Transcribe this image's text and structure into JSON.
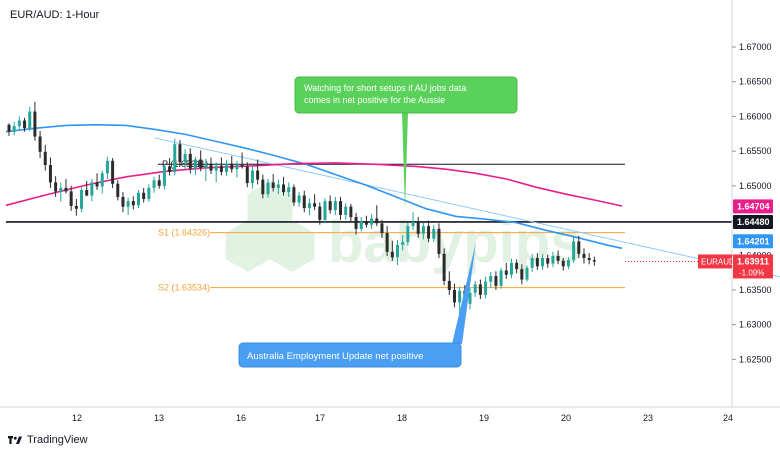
{
  "chart_data": {
    "type": "candlestick",
    "title": "EUR/AUD: 1-Hour",
    "symbol": "EURAUD",
    "xlabel": "",
    "ylabel": "",
    "x_ticks": [
      "12",
      "13",
      "16",
      "17",
      "18",
      "19",
      "20",
      "23",
      "24"
    ],
    "y_ticks": [
      "1.67000",
      "1.66500",
      "1.66000",
      "1.65500",
      "1.65000",
      "1.64500",
      "1.64000",
      "1.63500",
      "1.63000",
      "1.62500"
    ],
    "ylim": [
      1.6216,
      1.6736
    ],
    "grid": false,
    "colors": {
      "up": "#26a69a",
      "down": "#2b2b2b",
      "ma_fast": "#2f96f3",
      "ma_slow": "#e91e8c",
      "pivot_line": "#131722",
      "support": "#f7a23b",
      "trendline": "#90caf9",
      "price_badge": "#f23645"
    },
    "price_labels": [
      {
        "value": "1.64704",
        "color": "#e91e8c"
      },
      {
        "value": "1.64480",
        "color": "#131722"
      },
      {
        "value": "1.64201",
        "color": "#2f96f3"
      }
    ],
    "current": {
      "symbol": "EURAUD",
      "price": "1.63911",
      "change": "-1.09%"
    },
    "levels": [
      {
        "label": "P (1.65311)",
        "value": 1.65311,
        "color": "#131722"
      },
      {
        "label": "S1 (1.64326)",
        "value": 1.64326,
        "color": "#f7a23b"
      },
      {
        "label": "S2 (1.63534)",
        "value": 1.63534,
        "color": "#f7a23b"
      }
    ],
    "horizontal_level": 1.6448,
    "series": [
      {
        "name": "",
        "kind": "ma_fast",
        "points": [
          [
            0,
            1.6578
          ],
          [
            30,
            1.6583
          ],
          [
            60,
            1.6587
          ],
          [
            90,
            1.6588
          ],
          [
            120,
            1.6587
          ],
          [
            150,
            1.6581
          ],
          [
            180,
            1.6574
          ],
          [
            210,
            1.6564
          ],
          [
            240,
            1.6554
          ],
          [
            270,
            1.6543
          ],
          [
            300,
            1.6531
          ],
          [
            330,
            1.6516
          ],
          [
            360,
            1.6501
          ],
          [
            390,
            1.6484
          ],
          [
            420,
            1.6467
          ],
          [
            450,
            1.6456
          ],
          [
            480,
            1.6452
          ],
          [
            510,
            1.6447
          ],
          [
            540,
            1.6436
          ],
          [
            570,
            1.6426
          ],
          [
            600,
            1.6415
          ],
          [
            616,
            1.641
          ]
        ]
      },
      {
        "name": "",
        "kind": "ma_slow",
        "points": [
          [
            0,
            1.6472
          ],
          [
            40,
            1.6487
          ],
          [
            80,
            1.6501
          ],
          [
            120,
            1.6513
          ],
          [
            160,
            1.6521
          ],
          [
            200,
            1.6526
          ],
          [
            250,
            1.6529
          ],
          [
            290,
            1.6532
          ],
          [
            330,
            1.6533
          ],
          [
            370,
            1.6531
          ],
          [
            410,
            1.6528
          ],
          [
            440,
            1.6524
          ],
          [
            470,
            1.6518
          ],
          [
            500,
            1.651
          ],
          [
            530,
            1.6498
          ],
          [
            560,
            1.6488
          ],
          [
            590,
            1.6479
          ],
          [
            616,
            1.6471
          ]
        ]
      }
    ],
    "trendline": {
      "from": [
        155,
        1.6569
      ],
      "to": [
        780,
        1.6369
      ]
    },
    "candles": [
      [
        1.6588,
        1.659,
        1.6572,
        1.6578
      ],
      [
        1.6578,
        1.6592,
        1.6573,
        1.6586
      ],
      [
        1.6586,
        1.66,
        1.658,
        1.6594
      ],
      [
        1.6594,
        1.6598,
        1.6578,
        1.6583
      ],
      [
        1.6583,
        1.6614,
        1.6579,
        1.6607
      ],
      [
        1.6607,
        1.6621,
        1.6565,
        1.6571
      ],
      [
        1.6571,
        1.6579,
        1.654,
        1.6549
      ],
      [
        1.6549,
        1.6559,
        1.6522,
        1.653
      ],
      [
        1.653,
        1.6541,
        1.6497,
        1.6505
      ],
      [
        1.6505,
        1.6514,
        1.6484,
        1.6492
      ],
      [
        1.6492,
        1.6505,
        1.6477,
        1.6497
      ],
      [
        1.6497,
        1.651,
        1.6489,
        1.6492
      ],
      [
        1.6492,
        1.65,
        1.6464,
        1.6471
      ],
      [
        1.6471,
        1.6481,
        1.6457,
        1.6467
      ],
      [
        1.6467,
        1.6498,
        1.6462,
        1.6494
      ],
      [
        1.6494,
        1.6507,
        1.6485,
        1.6486
      ],
      [
        1.6486,
        1.651,
        1.6478,
        1.6505
      ],
      [
        1.6505,
        1.6518,
        1.6494,
        1.6499
      ],
      [
        1.6499,
        1.6522,
        1.6489,
        1.6518
      ],
      [
        1.6518,
        1.6542,
        1.651,
        1.6536
      ],
      [
        1.6536,
        1.654,
        1.6497,
        1.6503
      ],
      [
        1.6503,
        1.6508,
        1.6479,
        1.6484
      ],
      [
        1.6484,
        1.6491,
        1.6462,
        1.647
      ],
      [
        1.647,
        1.6483,
        1.6458,
        1.6478
      ],
      [
        1.6478,
        1.6485,
        1.6466,
        1.6472
      ],
      [
        1.6472,
        1.6494,
        1.6468,
        1.649
      ],
      [
        1.649,
        1.6497,
        1.6476,
        1.6481
      ],
      [
        1.6481,
        1.6502,
        1.6477,
        1.6497
      ],
      [
        1.6497,
        1.6513,
        1.649,
        1.6508
      ],
      [
        1.6508,
        1.6516,
        1.6496,
        1.65
      ],
      [
        1.65,
        1.6532,
        1.6495,
        1.6528
      ],
      [
        1.6528,
        1.654,
        1.6515,
        1.652
      ],
      [
        1.652,
        1.6568,
        1.6515,
        1.656
      ],
      [
        1.656,
        1.6566,
        1.6528,
        1.6534
      ],
      [
        1.6534,
        1.6553,
        1.6524,
        1.6546
      ],
      [
        1.6546,
        1.6554,
        1.6518,
        1.6525
      ],
      [
        1.6525,
        1.6542,
        1.6516,
        1.6538
      ],
      [
        1.6538,
        1.6551,
        1.6521,
        1.6526
      ],
      [
        1.6526,
        1.6539,
        1.6507,
        1.6532
      ],
      [
        1.6532,
        1.6541,
        1.6517,
        1.6522
      ],
      [
        1.6522,
        1.6534,
        1.6505,
        1.6529
      ],
      [
        1.6529,
        1.6541,
        1.6515,
        1.652
      ],
      [
        1.652,
        1.6537,
        1.6514,
        1.6532
      ],
      [
        1.6532,
        1.6543,
        1.6519,
        1.6524
      ],
      [
        1.6524,
        1.6536,
        1.6512,
        1.653
      ],
      [
        1.653,
        1.6548,
        1.6525,
        1.6528
      ],
      [
        1.6528,
        1.6534,
        1.6498,
        1.6504
      ],
      [
        1.6504,
        1.6528,
        1.6496,
        1.6522
      ],
      [
        1.6522,
        1.6538,
        1.6502,
        1.6509
      ],
      [
        1.6509,
        1.6516,
        1.6482,
        1.6488
      ],
      [
        1.6488,
        1.651,
        1.6483,
        1.6505
      ],
      [
        1.6505,
        1.6517,
        1.6492,
        1.6497
      ],
      [
        1.6497,
        1.6509,
        1.6488,
        1.6502
      ],
      [
        1.6502,
        1.6513,
        1.6486,
        1.6491
      ],
      [
        1.6491,
        1.6505,
        1.6484,
        1.6498
      ],
      [
        1.6498,
        1.6502,
        1.6471,
        1.6476
      ],
      [
        1.6476,
        1.6491,
        1.647,
        1.6486
      ],
      [
        1.6486,
        1.6493,
        1.6462,
        1.6468
      ],
      [
        1.6468,
        1.6482,
        1.6458,
        1.6475
      ],
      [
        1.6475,
        1.6488,
        1.6465,
        1.647
      ],
      [
        1.647,
        1.6476,
        1.6444,
        1.6451
      ],
      [
        1.6451,
        1.6482,
        1.6446,
        1.6478
      ],
      [
        1.6478,
        1.6486,
        1.646,
        1.6465
      ],
      [
        1.6465,
        1.6484,
        1.6458,
        1.6478
      ],
      [
        1.6478,
        1.6484,
        1.6451,
        1.6458
      ],
      [
        1.6458,
        1.6475,
        1.6451,
        1.647
      ],
      [
        1.647,
        1.6474,
        1.6449,
        1.6455
      ],
      [
        1.6455,
        1.6461,
        1.643,
        1.6438
      ],
      [
        1.6438,
        1.6455,
        1.6434,
        1.6449
      ],
      [
        1.6449,
        1.6457,
        1.644,
        1.6444
      ],
      [
        1.6444,
        1.6459,
        1.6438,
        1.6453
      ],
      [
        1.6453,
        1.6472,
        1.6442,
        1.6446
      ],
      [
        1.6446,
        1.6451,
        1.6425,
        1.6432
      ],
      [
        1.6432,
        1.6442,
        1.6399,
        1.6405
      ],
      [
        1.6405,
        1.6421,
        1.6392,
        1.6397
      ],
      [
        1.6397,
        1.6422,
        1.6386,
        1.6415
      ],
      [
        1.6415,
        1.6429,
        1.6407,
        1.6419
      ],
      [
        1.6419,
        1.6447,
        1.6414,
        1.6442
      ],
      [
        1.6442,
        1.6462,
        1.6436,
        1.6448
      ],
      [
        1.6448,
        1.6455,
        1.6425,
        1.6431
      ],
      [
        1.6431,
        1.6447,
        1.6423,
        1.6442
      ],
      [
        1.6442,
        1.645,
        1.6419,
        1.6424
      ],
      [
        1.6424,
        1.6444,
        1.6419,
        1.6438
      ],
      [
        1.6438,
        1.6446,
        1.6396,
        1.6402
      ],
      [
        1.6402,
        1.641,
        1.6357,
        1.6363
      ],
      [
        1.6363,
        1.6377,
        1.6343,
        1.635
      ],
      [
        1.635,
        1.6359,
        1.6325,
        1.6332
      ],
      [
        1.6332,
        1.6355,
        1.6316,
        1.6349
      ],
      [
        1.6349,
        1.6357,
        1.6322,
        1.633
      ],
      [
        1.633,
        1.6353,
        1.6322,
        1.6346
      ],
      [
        1.6346,
        1.6363,
        1.634,
        1.6358
      ],
      [
        1.6358,
        1.6365,
        1.6337,
        1.6343
      ],
      [
        1.6343,
        1.6369,
        1.6338,
        1.6362
      ],
      [
        1.6362,
        1.6376,
        1.6353,
        1.637
      ],
      [
        1.637,
        1.6377,
        1.635,
        1.6356
      ],
      [
        1.6356,
        1.6382,
        1.6352,
        1.6378
      ],
      [
        1.6378,
        1.6389,
        1.6366,
        1.6372
      ],
      [
        1.6372,
        1.6395,
        1.6367,
        1.6389
      ],
      [
        1.6389,
        1.6394,
        1.6374,
        1.638
      ],
      [
        1.638,
        1.6387,
        1.6358,
        1.6365
      ],
      [
        1.6365,
        1.6385,
        1.6362,
        1.6382
      ],
      [
        1.6382,
        1.6402,
        1.6376,
        1.6396
      ],
      [
        1.6396,
        1.6403,
        1.6379,
        1.6384
      ],
      [
        1.6384,
        1.6402,
        1.6379,
        1.6396
      ],
      [
        1.6396,
        1.6401,
        1.6382,
        1.6388
      ],
      [
        1.6388,
        1.6405,
        1.6383,
        1.6399
      ],
      [
        1.6399,
        1.6407,
        1.6387,
        1.6392
      ],
      [
        1.6392,
        1.6396,
        1.6378,
        1.6384
      ],
      [
        1.6384,
        1.6397,
        1.638,
        1.6393
      ],
      [
        1.6393,
        1.6427,
        1.6389,
        1.642
      ],
      [
        1.642,
        1.6428,
        1.6396,
        1.6402
      ],
      [
        1.6402,
        1.641,
        1.6388,
        1.6396
      ],
      [
        1.6396,
        1.6403,
        1.6387,
        1.6393
      ],
      [
        1.6393,
        1.6398,
        1.6385,
        1.6391
      ]
    ]
  },
  "annotations": {
    "top_note": {
      "lines": [
        "Watching for short setups if AU jobs data",
        "comes in net positive for the Aussie"
      ],
      "color": "#5ad15a"
    },
    "bottom_note": {
      "lines": [
        "Australia Employment Update net positive"
      ],
      "color": "#4a9ff5"
    }
  },
  "footer": {
    "brand": "TradingView"
  },
  "watermark": "babypips"
}
